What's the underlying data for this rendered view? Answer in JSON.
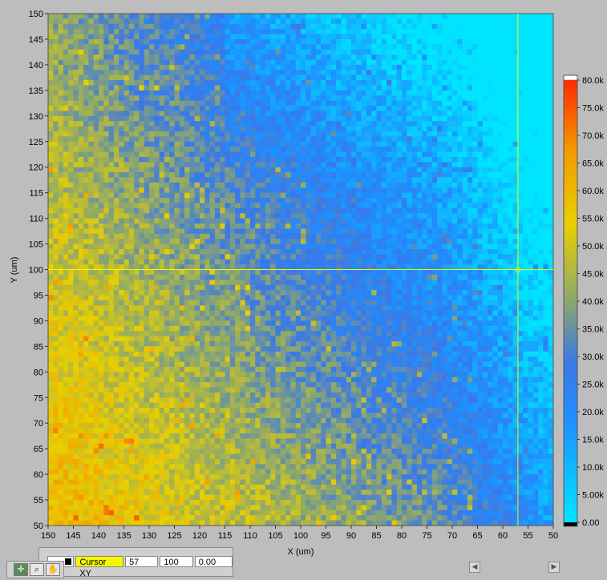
{
  "chart_data": {
    "type": "heatmap",
    "title": "",
    "xlabel": "X (um)",
    "ylabel": "Y (um)",
    "xlim": [
      150,
      50
    ],
    "ylim": [
      50,
      150
    ],
    "x_reversed": true,
    "x_ticks": [
      "150",
      "145",
      "140",
      "135",
      "130",
      "125",
      "120",
      "115",
      "110",
      "105",
      "100",
      "95",
      "90",
      "85",
      "80",
      "75",
      "70",
      "65",
      "60",
      "55",
      "50"
    ],
    "y_ticks": [
      "150",
      "145",
      "140",
      "135",
      "130",
      "125",
      "120",
      "115",
      "110",
      "105",
      "100",
      "95",
      "90",
      "85",
      "80",
      "75",
      "70",
      "65",
      "60",
      "55",
      "50"
    ],
    "colorbar_ticks": [
      "80.0k",
      "75.0k",
      "70.0k",
      "65.0k",
      "60.0k",
      "55.0k",
      "50.0k",
      "45.0k",
      "40.0k",
      "35.0k",
      "30.0k",
      "25.0k",
      "20.0k",
      "15.0k",
      "10.0k",
      "5.00k",
      "0.00"
    ],
    "colorbar_range": [
      0,
      80000
    ],
    "colorscale": [
      "#00e5ff",
      "#1e90ff",
      "#3a78e8",
      "#8fa86a",
      "#e8d000",
      "#f39a00",
      "#ff2a00",
      "#ffffff"
    ],
    "grid_resolution": [
      100,
      100
    ],
    "value_trend": "intensity highest (~45k-70k) at lower-left (X 150-100, Y 50-100), decreasing toward ~5k-15k at upper-right (X 65-50, Y 100-150)",
    "sample_values": [
      {
        "x": 140,
        "y": 70,
        "z": 62000
      },
      {
        "x": 120,
        "y": 60,
        "z": 52000
      },
      {
        "x": 100,
        "y": 100,
        "z": 30000
      },
      {
        "x": 80,
        "y": 130,
        "z": 20000
      },
      {
        "x": 60,
        "y": 140,
        "z": 8000
      },
      {
        "x": 55,
        "y": 80,
        "z": 7000
      }
    ],
    "cursor": {
      "name": "Cursor XY",
      "x": 57,
      "y": 100,
      "z": "0.00",
      "color": "#f7f700"
    }
  },
  "cursor_legend": {
    "name": "Cursor XY",
    "x": "57",
    "y": "100",
    "z": "0.00"
  },
  "palette_icons": [
    "cursor-move-icon",
    "zoom-icon",
    "pan-hand-icon"
  ]
}
